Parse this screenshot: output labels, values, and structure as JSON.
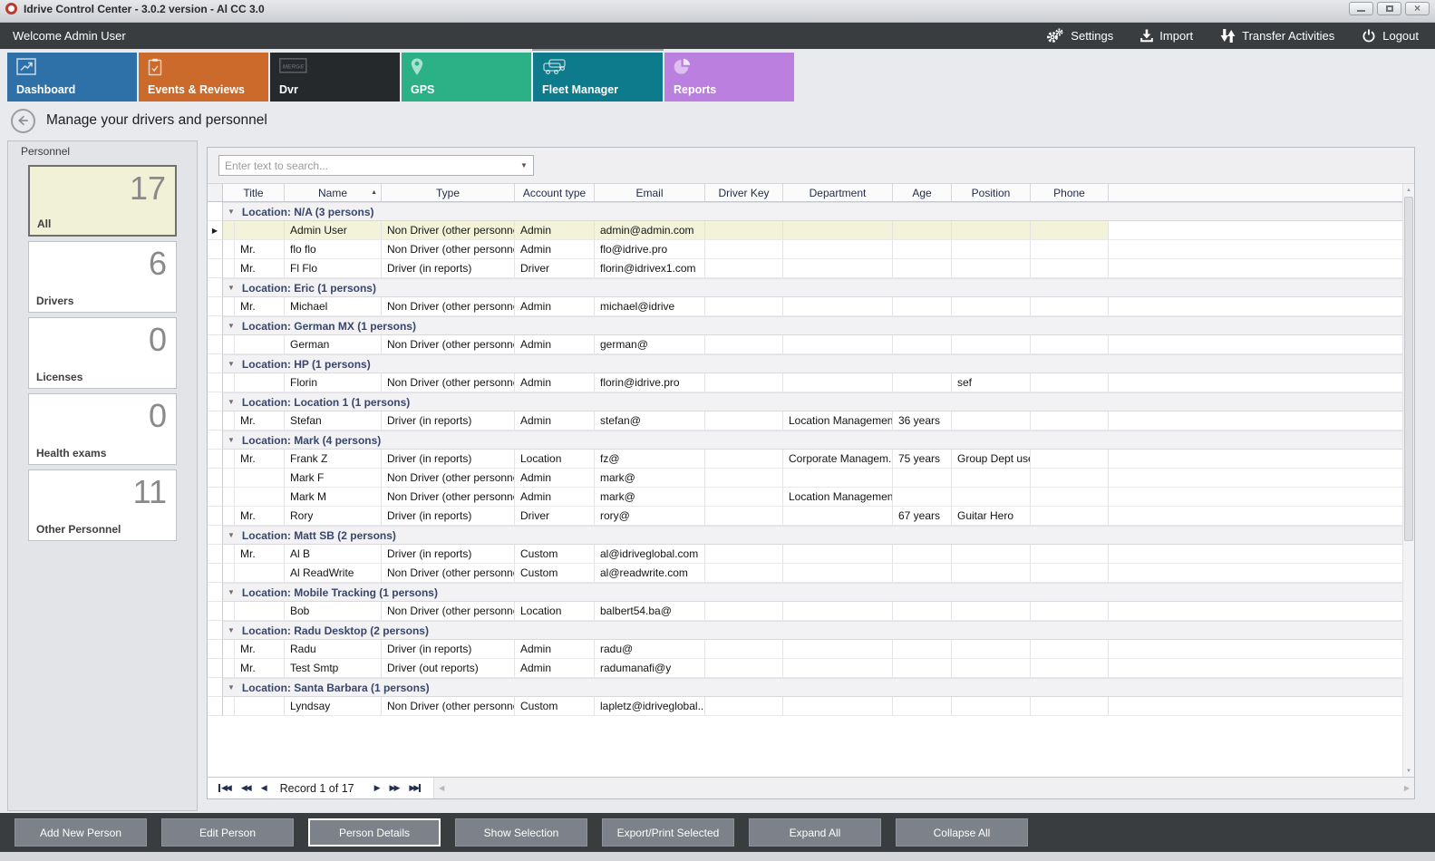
{
  "window": {
    "title": "Idrive Control Center - 3.0.2 version - Al CC 3.0",
    "controls": [
      "minimize",
      "maximize",
      "close"
    ]
  },
  "header": {
    "welcome": "Welcome Admin User",
    "actions": [
      {
        "label": "Settings",
        "icon": "gears-icon"
      },
      {
        "label": "Import",
        "icon": "import-icon"
      },
      {
        "label": "Transfer Activities",
        "icon": "transfer-arrows-icon"
      },
      {
        "label": "Logout",
        "icon": "power-icon"
      }
    ]
  },
  "nav_tiles": [
    {
      "label": "Dashboard",
      "color": "#2e71a9",
      "icon": "dashboard-chart-icon",
      "selected": false
    },
    {
      "label": "Events & Reviews",
      "color": "#cc6a2c",
      "icon": "clipboard-check-icon",
      "selected": false
    },
    {
      "label": "Dvr",
      "color": "#26292b",
      "icon": "merge-badge-icon",
      "selected": false
    },
    {
      "label": "GPS",
      "color": "#2bb185",
      "icon": "map-pin-icon",
      "selected": false
    },
    {
      "label": "Fleet Manager",
      "color": "#0e7b8d",
      "icon": "fleet-cars-icon",
      "selected": true
    },
    {
      "label": "Reports",
      "color": "#bb7fe0",
      "icon": "pie-chart-icon",
      "selected": false
    }
  ],
  "page": {
    "title": "Manage your drivers and personnel"
  },
  "sidebar": {
    "group_label": "Personnel",
    "cards": [
      {
        "label": "All",
        "count": "17",
        "selected": true
      },
      {
        "label": "Drivers",
        "count": "6",
        "selected": false
      },
      {
        "label": "Licenses",
        "count": "0",
        "selected": false
      },
      {
        "label": "Health exams",
        "count": "0",
        "selected": false
      },
      {
        "label": "Other Personnel",
        "count": "11",
        "selected": false
      }
    ]
  },
  "grid": {
    "search_placeholder": "Enter text to search...",
    "columns": [
      "Title",
      "Name",
      "Type",
      "Account type",
      "Email",
      "Driver Key",
      "Department",
      "Age",
      "Position",
      "Phone"
    ],
    "sorted_column": "Name",
    "sort_direction": "asc",
    "groups": [
      {
        "label": "Location: N/A (3 persons)",
        "rows": [
          {
            "title": "",
            "name": "Admin User",
            "type": "Non Driver (other personnel)",
            "account": "Admin",
            "email": "admin@admin.com",
            "driver_key": "",
            "department": "",
            "age": "",
            "position": "",
            "phone": "",
            "selected": true
          },
          {
            "title": "Mr.",
            "name": "flo flo",
            "type": "Non Driver (other personnel)",
            "account": "Admin",
            "email": "flo@idrive.pro",
            "driver_key": "",
            "department": "",
            "age": "",
            "position": "",
            "phone": ""
          },
          {
            "title": "Mr.",
            "name": "Fl Flo",
            "type": "Driver (in reports)",
            "account": "Driver",
            "email": "florin@idrivex1.com",
            "driver_key": "",
            "department": "",
            "age": "",
            "position": "",
            "phone": ""
          }
        ]
      },
      {
        "label": "Location: Eric (1 persons)",
        "rows": [
          {
            "title": "Mr.",
            "name": "Michael",
            "type": "Non Driver (other personnel)",
            "account": "Admin",
            "email": "michael@idrive",
            "driver_key": "",
            "department": "",
            "age": "",
            "position": "",
            "phone": ""
          }
        ]
      },
      {
        "label": "Location: German MX (1 persons)",
        "rows": [
          {
            "title": "",
            "name": "German",
            "type": "Non Driver (other personnel)",
            "account": "Admin",
            "email": "german@",
            "driver_key": "",
            "department": "",
            "age": "",
            "position": "",
            "phone": ""
          }
        ]
      },
      {
        "label": "Location: HP (1 persons)",
        "rows": [
          {
            "title": "",
            "name": "Florin",
            "type": "Non Driver (other personnel)",
            "account": "Admin",
            "email": "florin@idrive.pro",
            "driver_key": "",
            "department": "",
            "age": "",
            "position": "sef",
            "phone": ""
          }
        ]
      },
      {
        "label": "Location: Location 1 (1 persons)",
        "rows": [
          {
            "title": "Mr.",
            "name": "Stefan",
            "type": "Driver (in reports)",
            "account": "Admin",
            "email": "stefan@",
            "driver_key": "",
            "department": "Location Management",
            "age": "36 years",
            "position": "",
            "phone": ""
          }
        ]
      },
      {
        "label": "Location: Mark (4 persons)",
        "rows": [
          {
            "title": "Mr.",
            "name": "Frank Z",
            "type": "Driver (in reports)",
            "account": "Location",
            "email": "fz@",
            "driver_key": "",
            "department": "Corporate Managem...",
            "age": "75 years",
            "position": "Group Dept user",
            "phone": ""
          },
          {
            "title": "",
            "name": "Mark F",
            "type": "Non Driver (other personnel)",
            "account": "Admin",
            "email": "mark@",
            "driver_key": "",
            "department": "",
            "age": "",
            "position": "",
            "phone": ""
          },
          {
            "title": "",
            "name": "Mark M",
            "type": "Non Driver (other personnel)",
            "account": "Admin",
            "email": "mark@",
            "driver_key": "",
            "department": "Location Management",
            "age": "",
            "position": "",
            "phone": ""
          },
          {
            "title": "Mr.",
            "name": "Rory",
            "type": "Driver (in reports)",
            "account": "Driver",
            "email": "rory@",
            "driver_key": "",
            "department": "",
            "age": "67 years",
            "position": "Guitar Hero",
            "phone": ""
          }
        ]
      },
      {
        "label": "Location: Matt SB (2 persons)",
        "rows": [
          {
            "title": "Mr.",
            "name": "Al B",
            "type": "Driver (in reports)",
            "account": "Custom",
            "email": "al@idriveglobal.com",
            "driver_key": "",
            "department": "",
            "age": "",
            "position": "",
            "phone": ""
          },
          {
            "title": "",
            "name": "Al ReadWrite",
            "type": "Non Driver (other personnel)",
            "account": "Custom",
            "email": "al@readwrite.com",
            "driver_key": "",
            "department": "",
            "age": "",
            "position": "",
            "phone": ""
          }
        ]
      },
      {
        "label": "Location: Mobile Tracking (1 persons)",
        "rows": [
          {
            "title": "",
            "name": "Bob",
            "type": "Non Driver (other personnel)",
            "account": "Location",
            "email": "balbert54.ba@",
            "driver_key": "",
            "department": "",
            "age": "",
            "position": "",
            "phone": ""
          }
        ]
      },
      {
        "label": "Location: Radu Desktop (2 persons)",
        "rows": [
          {
            "title": "Mr.",
            "name": "Radu",
            "type": "Driver (in reports)",
            "account": "Admin",
            "email": "radu@",
            "driver_key": "",
            "department": "",
            "age": "",
            "position": "",
            "phone": ""
          },
          {
            "title": "Mr.",
            "name": "Test Smtp",
            "type": "Driver (out reports)",
            "account": "Admin",
            "email": "radumanafi@y",
            "driver_key": "",
            "department": "",
            "age": "",
            "position": "",
            "phone": ""
          }
        ]
      },
      {
        "label": "Location: Santa Barbara (1 persons)",
        "rows": [
          {
            "title": "",
            "name": "Lyndsay",
            "type": "Non Driver (other personnel)",
            "account": "Custom",
            "email": "lapletz@idriveglobal....",
            "driver_key": "",
            "department": "",
            "age": "",
            "position": "",
            "phone": ""
          }
        ]
      }
    ],
    "record_nav": {
      "label": "Record 1 of 17"
    }
  },
  "toolbar": {
    "buttons": [
      {
        "label": "Add New Person",
        "focused": false
      },
      {
        "label": "Edit Person",
        "focused": false
      },
      {
        "label": "Person Details",
        "focused": true
      },
      {
        "label": "Show Selection",
        "focused": false
      },
      {
        "label": "Export/Print Selected",
        "focused": false
      },
      {
        "label": "Expand All",
        "focused": false
      },
      {
        "label": "Collapse All",
        "focused": false
      }
    ]
  },
  "colors": {
    "appbar_bg": "#3a3d40",
    "selected_row_bg": "#f3f3da",
    "selected_card_bg": "#f1f1d8",
    "toolbar_button_bg": "#7c818a"
  }
}
